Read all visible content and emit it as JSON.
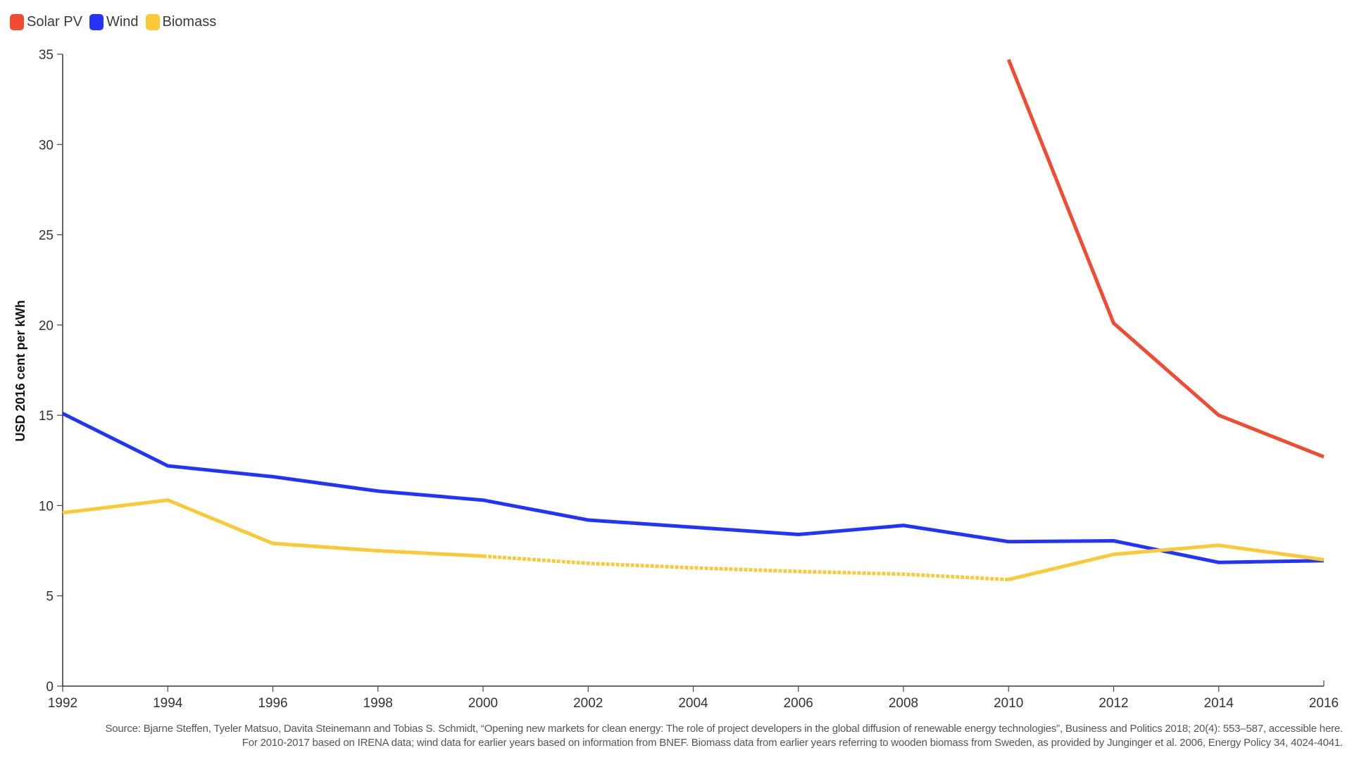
{
  "legend": [
    {
      "label": "Solar PV",
      "color": "#f24a33"
    },
    {
      "label": "Wind",
      "color": "#2233ff"
    },
    {
      "label": "Biomass",
      "color": "#fbc935"
    }
  ],
  "footer": {
    "line1": "Source: Bjarne Steffen, Tyeler Matsuo, Davita Steinemann and Tobias S. Schmidt, “Opening new markets for clean energy: The role of project developers in the global diffusion of renewable energy technologies”, Business and Politics 2018; 20(4): 553–587, accessible here.",
    "line2": "For 2010-2017 based on IRENA data; wind data for earlier years based on information from BNEF. Biomass data from earlier years referring to wooden biomass from Sweden, as provided by Junginger et al. 2006, Energy Policy 34, 4024-4041."
  },
  "chart_data": {
    "type": "line",
    "title": "",
    "xlabel": "",
    "ylabel": "USD 2016 cent per kWh",
    "xlim": [
      1992,
      2016
    ],
    "ylim": [
      0,
      35
    ],
    "grid": false,
    "legend_position": "top-left",
    "x_ticks": [
      "1992",
      "1994",
      "1996",
      "1998",
      "2000",
      "2002",
      "2004",
      "2006",
      "2008",
      "2010",
      "2012",
      "2014",
      "2016"
    ],
    "y_ticks": [
      "0",
      "5",
      "10",
      "15",
      "20",
      "25",
      "30",
      "35"
    ],
    "x": [
      1992,
      1994,
      1996,
      1998,
      2000,
      2002,
      2004,
      2006,
      2008,
      2010,
      2012,
      2014,
      2016
    ],
    "series": [
      {
        "name": "Solar PV",
        "color": "#f24a33",
        "values": [
          null,
          null,
          null,
          null,
          null,
          null,
          null,
          null,
          null,
          34.7,
          20.1,
          15.0,
          12.7
        ]
      },
      {
        "name": "Wind",
        "color": "#2233ff",
        "values": [
          15.1,
          12.2,
          11.6,
          10.8,
          10.3,
          9.2,
          8.8,
          8.4,
          8.9,
          8.0,
          8.05,
          6.85,
          6.95
        ]
      },
      {
        "name": "Biomass",
        "color": "#fbc935",
        "values": [
          9.6,
          10.3,
          7.9,
          7.5,
          7.2,
          6.8,
          6.55,
          6.35,
          6.2,
          5.9,
          7.3,
          7.8,
          7.0
        ],
        "dashed_range": [
          2000,
          2010
        ]
      }
    ],
    "annotations": []
  }
}
